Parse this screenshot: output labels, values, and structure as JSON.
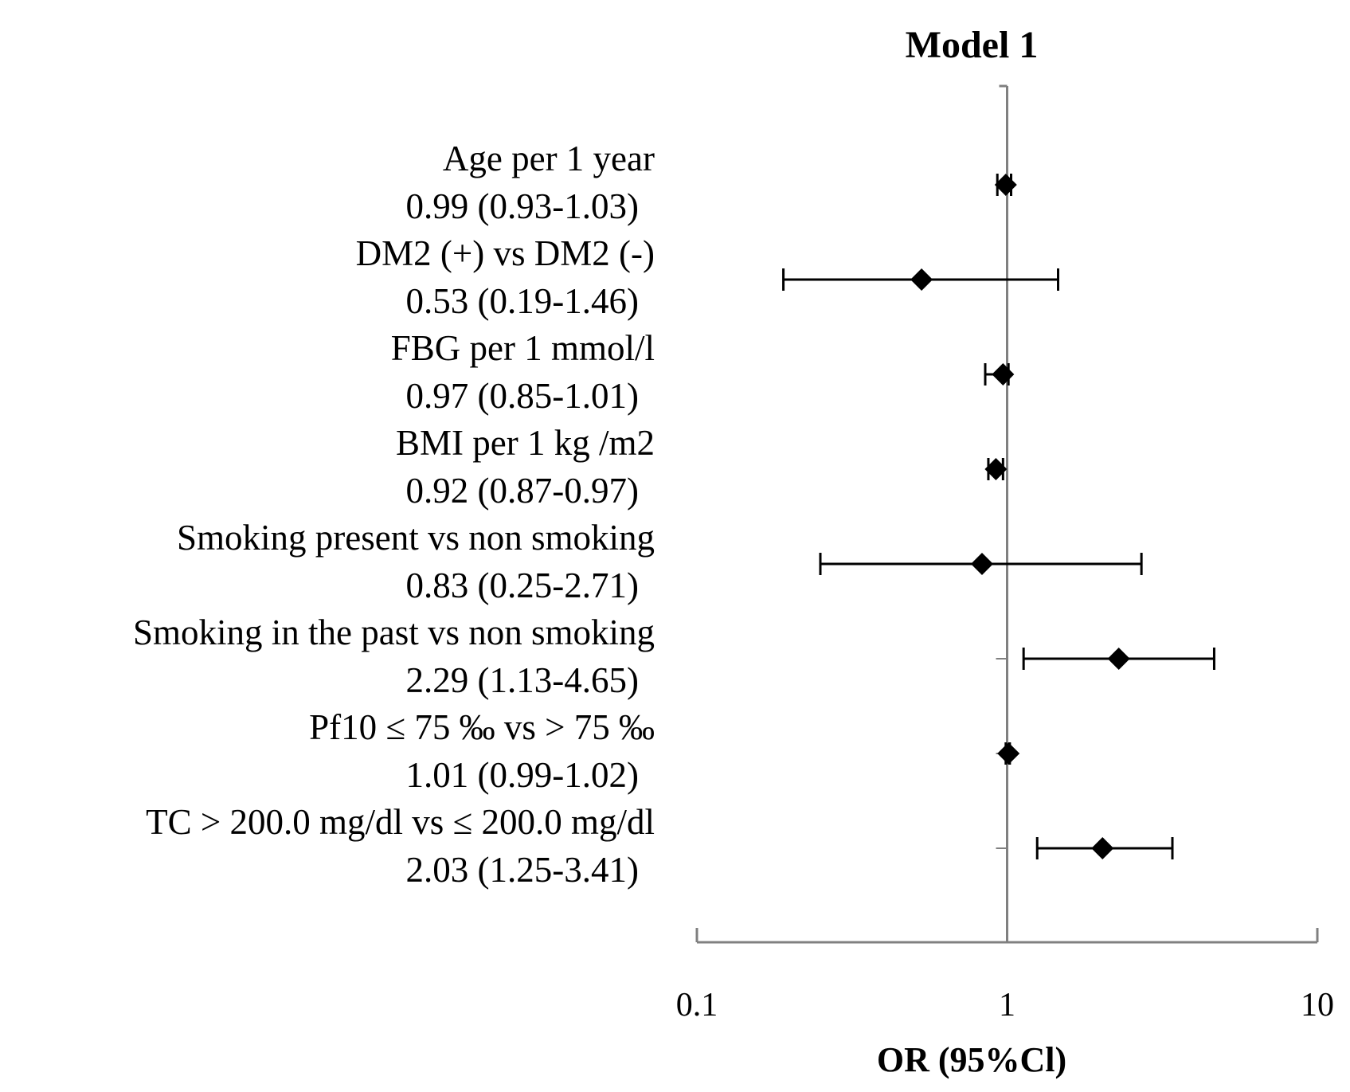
{
  "chart_data": {
    "type": "forest",
    "title": "Model 1",
    "xlabel": "OR (95%Cl)",
    "x_scale": "log",
    "xlim": [
      0.1,
      10
    ],
    "reference_line": 1,
    "ticks": [
      {
        "value": 0.1,
        "label": "0.1"
      },
      {
        "value": 1,
        "label": "1"
      },
      {
        "value": 10,
        "label": "10"
      }
    ],
    "rows": [
      {
        "label": "Age per 1 year",
        "estimate_text": "0.99 (0.93-1.03)",
        "or": 0.99,
        "ci_low": 0.93,
        "ci_high": 1.03
      },
      {
        "label": "DM2 (+) vs DM2 (-)",
        "estimate_text": "0.53 (0.19-1.46)",
        "or": 0.53,
        "ci_low": 0.19,
        "ci_high": 1.46
      },
      {
        "label": "FBG per 1 mmol/l",
        "estimate_text": "0.97 (0.85-1.01)",
        "or": 0.97,
        "ci_low": 0.85,
        "ci_high": 1.01
      },
      {
        "label": "BMI per 1 kg /m2",
        "estimate_text": "0.92 (0.87-0.97)",
        "or": 0.92,
        "ci_low": 0.87,
        "ci_high": 0.97
      },
      {
        "label": "Smoking present  vs non smoking",
        "estimate_text": "0.83 (0.25-2.71)",
        "or": 0.83,
        "ci_low": 0.25,
        "ci_high": 2.71
      },
      {
        "label": "Smoking in the past  vs non smoking",
        "estimate_text": "2.29 (1.13-4.65)",
        "or": 2.29,
        "ci_low": 1.13,
        "ci_high": 4.65
      },
      {
        "label": "Pf10 ≤ 75 ‰  vs > 75 ‰",
        "estimate_text": "1.01 (0.99-1.02)",
        "or": 1.01,
        "ci_low": 0.99,
        "ci_high": 1.02
      },
      {
        "label": "TC > 200.0 mg/dl  vs ≤ 200.0 mg/dl",
        "estimate_text": "2.03 (1.25-3.41)",
        "or": 2.03,
        "ci_low": 1.25,
        "ci_high": 3.41
      }
    ]
  }
}
